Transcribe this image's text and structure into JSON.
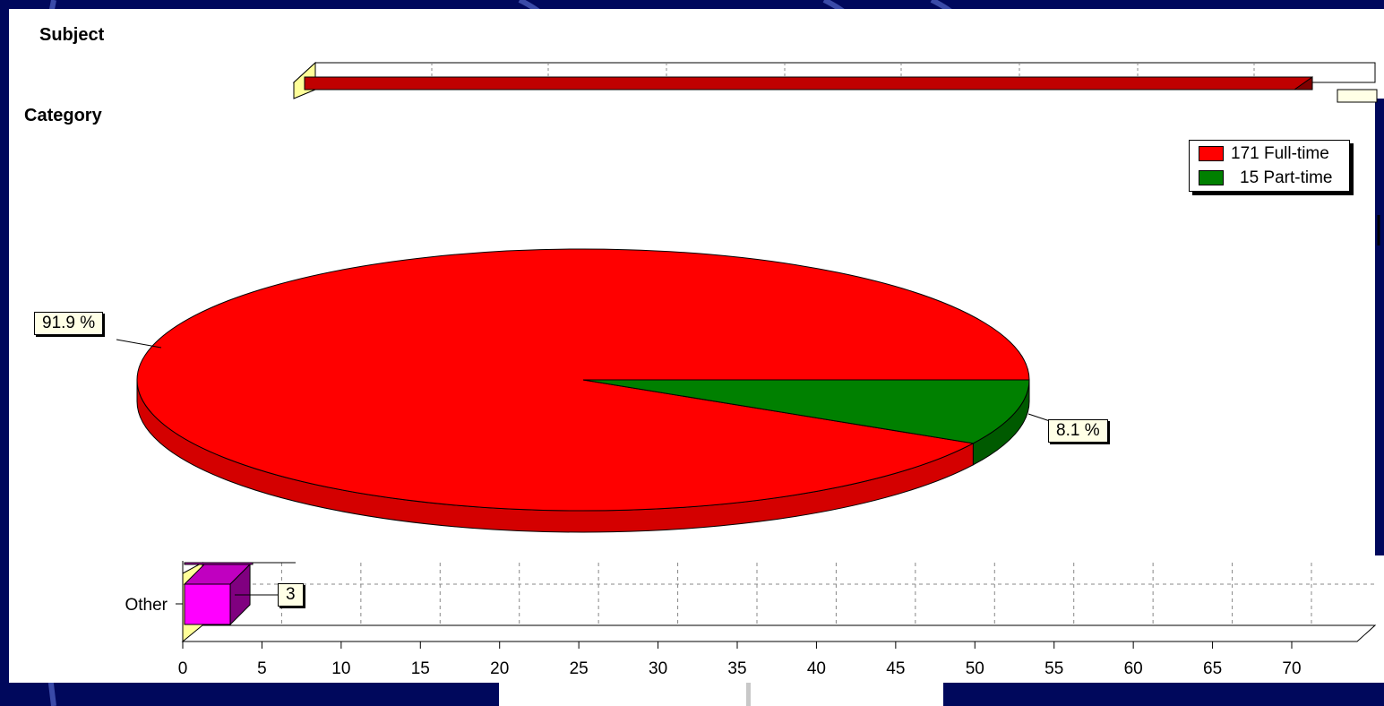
{
  "subject_panel": {
    "title": "Subject"
  },
  "category_panel": {
    "title": "Category",
    "legend": [
      {
        "label": "171 Full-time",
        "color": "#ff0000"
      },
      {
        "label": "15 Part-time",
        "color": "#008000"
      }
    ],
    "percent_labels": [
      "91.9 %",
      "8.1 %"
    ]
  },
  "bar_panel": {
    "category_label": "Other",
    "value_label": "3",
    "x_ticks": [
      "0",
      "5",
      "10",
      "15",
      "20",
      "25",
      "30",
      "35",
      "40",
      "45",
      "50",
      "55",
      "60",
      "65",
      "70"
    ]
  },
  "chart_data": [
    {
      "type": "pie",
      "title": "Category",
      "slices": [
        {
          "label": "Full-time",
          "count": 171,
          "percent": 91.9,
          "color": "#ff0000"
        },
        {
          "label": "Part-time",
          "count": 15,
          "percent": 8.1,
          "color": "#008000"
        }
      ]
    },
    {
      "type": "bar",
      "orientation": "horizontal",
      "categories": [
        "Other"
      ],
      "values": [
        3
      ],
      "xlim": [
        0,
        70
      ],
      "grid": true,
      "bar_color": "#ff00ff"
    }
  ]
}
